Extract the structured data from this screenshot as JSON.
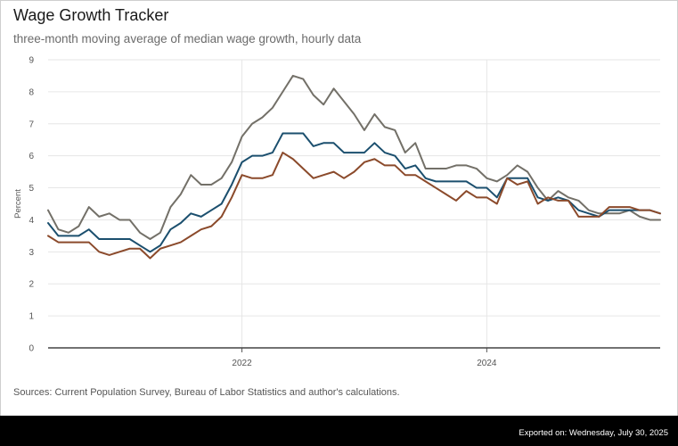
{
  "header": {
    "title": "Wage Growth Tracker",
    "subtitle": "three-month moving average of median wage growth, hourly data"
  },
  "footer": {
    "source": "Sources: Current Population Survey, Bureau of Labor Statistics and author's calculations.",
    "export_label": "Exported on: Wednesday, July 30, 2025"
  },
  "chart_data": {
    "type": "line",
    "ylabel": "Percent",
    "xlabel": "",
    "ylim": [
      0,
      9
    ],
    "yticks": [
      0,
      1,
      2,
      3,
      4,
      5,
      6,
      7,
      8,
      9
    ],
    "xticks": [
      {
        "label": "2022",
        "x": "2022-01"
      },
      {
        "label": "2024",
        "x": "2024-01"
      }
    ],
    "x_range": [
      "2020-06",
      "2025-06"
    ],
    "grid": true,
    "legend": "none",
    "x": [
      "2020-06",
      "2020-07",
      "2020-08",
      "2020-09",
      "2020-10",
      "2020-11",
      "2020-12",
      "2021-01",
      "2021-02",
      "2021-03",
      "2021-04",
      "2021-05",
      "2021-06",
      "2021-07",
      "2021-08",
      "2021-09",
      "2021-10",
      "2021-11",
      "2021-12",
      "2022-01",
      "2022-02",
      "2022-03",
      "2022-04",
      "2022-05",
      "2022-06",
      "2022-07",
      "2022-08",
      "2022-09",
      "2022-10",
      "2022-11",
      "2022-12",
      "2023-01",
      "2023-02",
      "2023-03",
      "2023-04",
      "2023-05",
      "2023-06",
      "2023-07",
      "2023-08",
      "2023-09",
      "2023-10",
      "2023-11",
      "2023-12",
      "2024-01",
      "2024-02",
      "2024-03",
      "2024-04",
      "2024-05",
      "2024-06",
      "2024-07",
      "2024-08",
      "2024-09",
      "2024-10",
      "2024-11",
      "2024-12",
      "2025-01",
      "2025-02",
      "2025-03",
      "2025-04",
      "2025-05",
      "2025-06"
    ],
    "series": [
      {
        "color": "#737068",
        "values": [
          4.3,
          3.7,
          3.6,
          3.8,
          4.4,
          4.1,
          4.2,
          4.0,
          4.0,
          3.6,
          3.4,
          3.6,
          4.4,
          4.8,
          5.4,
          5.1,
          5.1,
          5.3,
          5.8,
          6.6,
          7.0,
          7.2,
          7.5,
          8.0,
          8.5,
          8.4,
          7.9,
          7.6,
          8.1,
          7.7,
          7.3,
          6.8,
          7.3,
          6.9,
          6.8,
          6.1,
          6.4,
          5.6,
          5.6,
          5.6,
          5.7,
          5.7,
          5.6,
          5.3,
          5.2,
          5.4,
          5.7,
          5.5,
          5.0,
          4.6,
          4.9,
          4.7,
          4.6,
          4.3,
          4.2,
          4.2,
          4.2,
          4.3,
          4.1,
          4.0,
          4.0
        ]
      },
      {
        "color": "#1b4f6e",
        "values": [
          3.9,
          3.5,
          3.5,
          3.5,
          3.7,
          3.4,
          3.4,
          3.4,
          3.4,
          3.2,
          3.0,
          3.2,
          3.7,
          3.9,
          4.2,
          4.1,
          4.3,
          4.5,
          5.1,
          5.8,
          6.0,
          6.0,
          6.1,
          6.7,
          6.7,
          6.7,
          6.3,
          6.4,
          6.4,
          6.1,
          6.1,
          6.1,
          6.4,
          6.1,
          6.0,
          5.6,
          5.7,
          5.3,
          5.2,
          5.2,
          5.2,
          5.2,
          5.0,
          5.0,
          4.7,
          5.3,
          5.3,
          5.3,
          4.7,
          4.6,
          4.7,
          4.6,
          4.3,
          4.2,
          4.1,
          4.3,
          4.3,
          4.3,
          4.3,
          4.3,
          4.2
        ]
      },
      {
        "color": "#8b4a2b",
        "values": [
          3.5,
          3.3,
          3.3,
          3.3,
          3.3,
          3.0,
          2.9,
          3.0,
          3.1,
          3.1,
          2.8,
          3.1,
          3.2,
          3.3,
          3.5,
          3.7,
          3.8,
          4.1,
          4.7,
          5.4,
          5.3,
          5.3,
          5.4,
          6.1,
          5.9,
          5.6,
          5.3,
          5.4,
          5.5,
          5.3,
          5.5,
          5.8,
          5.9,
          5.7,
          5.7,
          5.4,
          5.4,
          5.2,
          5.0,
          4.8,
          4.6,
          4.9,
          4.7,
          4.7,
          4.5,
          5.3,
          5.1,
          5.2,
          4.5,
          4.7,
          4.6,
          4.6,
          4.1,
          4.1,
          4.1,
          4.4,
          4.4,
          4.4,
          4.3,
          4.3,
          4.2
        ]
      }
    ]
  }
}
